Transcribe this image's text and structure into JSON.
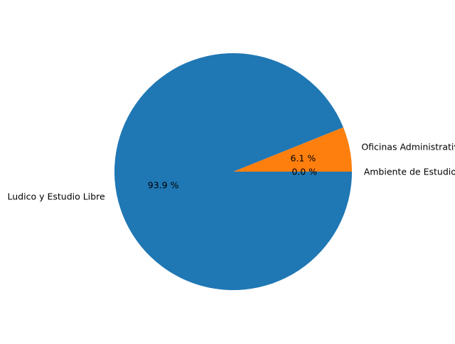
{
  "chart_data": {
    "type": "pie",
    "title": "",
    "slices": [
      {
        "label": "Ambiente de Estudio",
        "value": 0.0,
        "pct_label": "0.0 %",
        "color": "#2ca02c"
      },
      {
        "label": "Oficinas Administrativas",
        "value": 6.1,
        "pct_label": "6.1 %",
        "color": "#ff7f0e"
      },
      {
        "label": "Ludico y Estudio Libre",
        "value": 93.9,
        "pct_label": "93.9 %",
        "color": "#1f77b4"
      }
    ],
    "start_angle_deg": 0,
    "direction": "counterclockwise",
    "legend": "none"
  }
}
